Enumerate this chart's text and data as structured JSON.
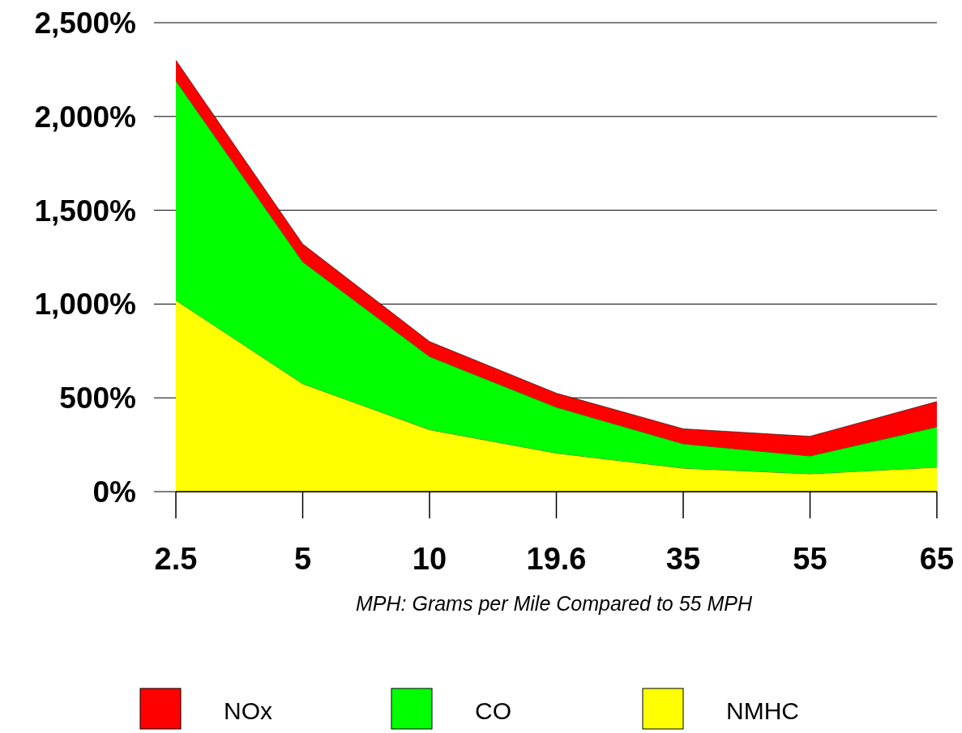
{
  "chart_data": {
    "type": "area",
    "stacked": true,
    "xlabel": "MPH: Grams per Mile Compared to 55 MPH",
    "categories": [
      "2.5",
      "5",
      "10",
      "19.6",
      "35",
      "55",
      "65"
    ],
    "series": [
      {
        "name": "NMHC",
        "color": "#ffff00",
        "values": [
          1020,
          575,
          330,
          205,
          125,
          95,
          130
        ]
      },
      {
        "name": "CO",
        "color": "#00ff00",
        "values": [
          1170,
          650,
          390,
          245,
          130,
          95,
          215
        ]
      },
      {
        "name": "NOx",
        "color": "#ff0000",
        "values": [
          110,
          95,
          80,
          75,
          80,
          105,
          135
        ]
      }
    ],
    "ylim": [
      0,
      2500
    ],
    "yticks": [
      {
        "value": 0,
        "label": "0%"
      },
      {
        "value": 500,
        "label": "500%"
      },
      {
        "value": 1000,
        "label": "1,000%"
      },
      {
        "value": 1500,
        "label": "1,500%"
      },
      {
        "value": 2000,
        "label": "2,000%"
      },
      {
        "value": 2500,
        "label": "2,500%"
      }
    ],
    "grid": "y",
    "legend": "bottom"
  }
}
